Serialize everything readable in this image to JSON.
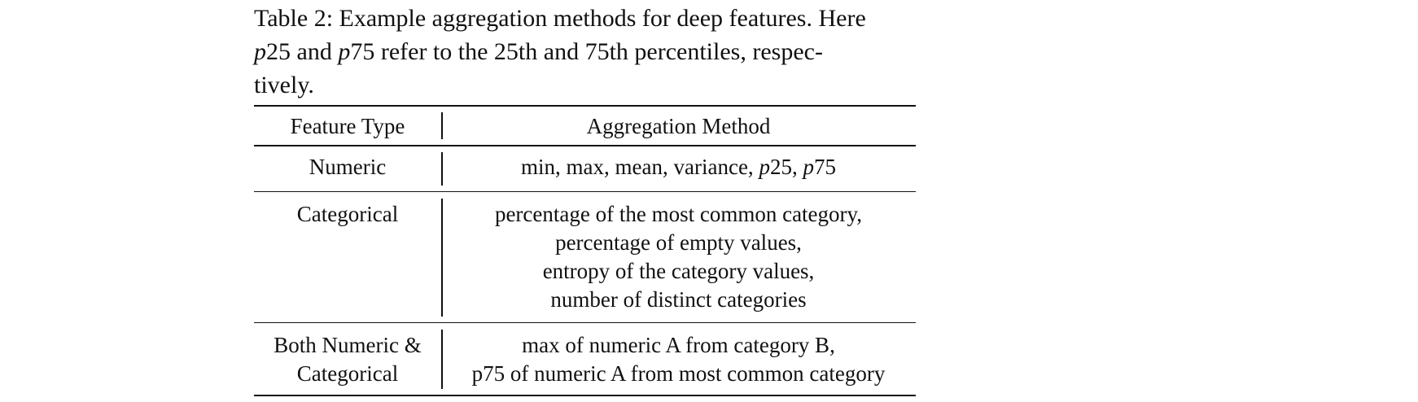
{
  "caption": {
    "lines": [
      "Table 2: Example aggregation methods for deep features. Here",
      "p25 and p75 refer to the 25th and 75th percentiles, respec-",
      "tively."
    ],
    "line2_parts": [
      "p",
      "25 and ",
      "p",
      "75 refer to the 25th and 75th percentiles, respec-"
    ]
  },
  "table": {
    "headers": [
      "Feature Type",
      "Aggregation Method"
    ],
    "rows": [
      {
        "feature_type": [
          "Numeric"
        ],
        "methods": [
          "min, max, mean, variance, p25, p75"
        ],
        "methods_parts": [
          "min, max, mean, variance, ",
          "p",
          "25, ",
          "p",
          "75"
        ]
      },
      {
        "feature_type": [
          "Categorical"
        ],
        "methods": [
          "percentage of the most common category,",
          "percentage of empty values,",
          "entropy of the category values,",
          "number of distinct categories"
        ]
      },
      {
        "feature_type": [
          "Both Numeric &",
          "Categorical"
        ],
        "methods": [
          "max of numeric A from category B,",
          "p75 of numeric A from most common category"
        ]
      }
    ]
  }
}
